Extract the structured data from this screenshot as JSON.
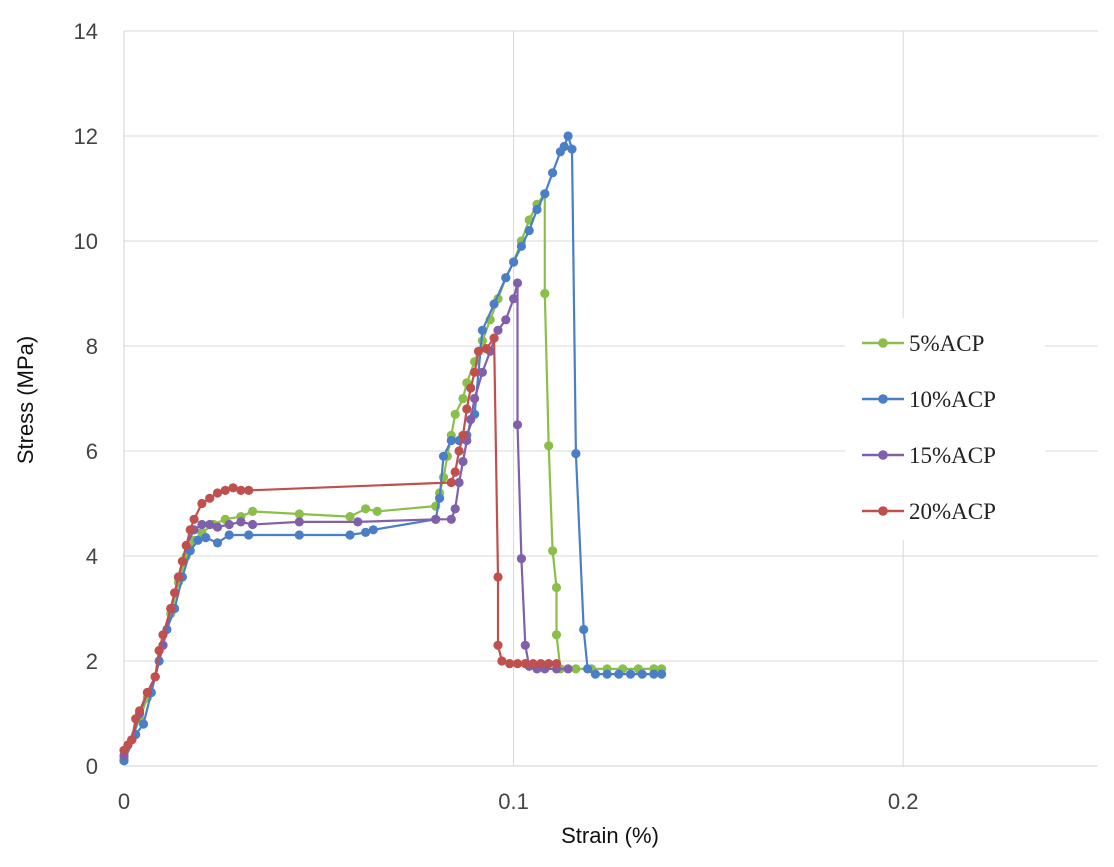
{
  "chart_data": {
    "type": "scatter",
    "title": "",
    "xlabel": "Strain (%)",
    "ylabel": "Stress (MPa)",
    "xlim": [
      0,
      0.25
    ],
    "ylim": [
      0,
      14
    ],
    "x_ticks": [
      "0",
      "0.1",
      "0.2"
    ],
    "x_tick_values": [
      0,
      0.1,
      0.2
    ],
    "y_ticks": [
      "0",
      "2",
      "4",
      "6",
      "8",
      "10",
      "12",
      "14"
    ],
    "y_tick_values": [
      0,
      2,
      4,
      6,
      8,
      10,
      12,
      14
    ],
    "grid": true,
    "legend_position": "right",
    "series": [
      {
        "name": "5%ACP",
        "color": "#8CBF4A",
        "points": [
          [
            0,
            0.15
          ],
          [
            0.002,
            0.5
          ],
          [
            0.004,
            0.9
          ],
          [
            0.006,
            1.3
          ],
          [
            0.008,
            1.7
          ],
          [
            0.01,
            2.3
          ],
          [
            0.012,
            2.9
          ],
          [
            0.014,
            3.5
          ],
          [
            0.016,
            4.0
          ],
          [
            0.018,
            4.3
          ],
          [
            0.02,
            4.45
          ],
          [
            0.023,
            4.6
          ],
          [
            0.026,
            4.7
          ],
          [
            0.03,
            4.75
          ],
          [
            0.033,
            4.85
          ],
          [
            0.045,
            4.8
          ],
          [
            0.058,
            4.75
          ],
          [
            0.062,
            4.9
          ],
          [
            0.065,
            4.85
          ],
          [
            0.08,
            4.95
          ],
          [
            0.081,
            5.2
          ],
          [
            0.082,
            5.5
          ],
          [
            0.083,
            5.9
          ],
          [
            0.084,
            6.3
          ],
          [
            0.085,
            6.7
          ],
          [
            0.087,
            7.0
          ],
          [
            0.088,
            7.3
          ],
          [
            0.09,
            7.7
          ],
          [
            0.092,
            8.1
          ],
          [
            0.094,
            8.5
          ],
          [
            0.096,
            8.9
          ],
          [
            0.098,
            9.3
          ],
          [
            0.1,
            9.6
          ],
          [
            0.102,
            10.0
          ],
          [
            0.104,
            10.4
          ],
          [
            0.106,
            10.7
          ],
          [
            0.108,
            10.9
          ],
          [
            0.108,
            9.0
          ],
          [
            0.109,
            6.1
          ],
          [
            0.11,
            4.1
          ],
          [
            0.111,
            3.4
          ],
          [
            0.111,
            2.5
          ],
          [
            0.112,
            1.85
          ],
          [
            0.116,
            1.85
          ],
          [
            0.12,
            1.85
          ],
          [
            0.124,
            1.85
          ],
          [
            0.128,
            1.85
          ],
          [
            0.132,
            1.85
          ],
          [
            0.136,
            1.85
          ],
          [
            0.138,
            1.85
          ]
        ]
      },
      {
        "name": "10%ACP",
        "color": "#4A7EC6",
        "points": [
          [
            0,
            0.1
          ],
          [
            0.003,
            0.6
          ],
          [
            0.005,
            0.8
          ],
          [
            0.007,
            1.4
          ],
          [
            0.009,
            2.0
          ],
          [
            0.011,
            2.6
          ],
          [
            0.013,
            3.0
          ],
          [
            0.015,
            3.6
          ],
          [
            0.017,
            4.1
          ],
          [
            0.019,
            4.3
          ],
          [
            0.021,
            4.35
          ],
          [
            0.024,
            4.25
          ],
          [
            0.027,
            4.4
          ],
          [
            0.032,
            4.4
          ],
          [
            0.045,
            4.4
          ],
          [
            0.058,
            4.4
          ],
          [
            0.062,
            4.45
          ],
          [
            0.064,
            4.5
          ],
          [
            0.08,
            4.7
          ],
          [
            0.081,
            5.1
          ],
          [
            0.082,
            5.9
          ],
          [
            0.084,
            6.2
          ],
          [
            0.086,
            6.2
          ],
          [
            0.088,
            6.3
          ],
          [
            0.09,
            6.7
          ],
          [
            0.092,
            8.3
          ],
          [
            0.095,
            8.8
          ],
          [
            0.098,
            9.3
          ],
          [
            0.1,
            9.6
          ],
          [
            0.102,
            9.9
          ],
          [
            0.104,
            10.2
          ],
          [
            0.106,
            10.6
          ],
          [
            0.108,
            10.9
          ],
          [
            0.11,
            11.3
          ],
          [
            0.112,
            11.7
          ],
          [
            0.113,
            11.8
          ],
          [
            0.114,
            12.0
          ],
          [
            0.115,
            11.75
          ],
          [
            0.116,
            5.95
          ],
          [
            0.118,
            2.6
          ],
          [
            0.119,
            1.85
          ],
          [
            0.121,
            1.75
          ],
          [
            0.124,
            1.75
          ],
          [
            0.127,
            1.75
          ],
          [
            0.13,
            1.75
          ],
          [
            0.133,
            1.75
          ],
          [
            0.136,
            1.75
          ],
          [
            0.138,
            1.75
          ]
        ]
      },
      {
        "name": "15%ACP",
        "color": "#8060AA",
        "points": [
          [
            0,
            0.2
          ],
          [
            0.002,
            0.5
          ],
          [
            0.004,
            1.0
          ],
          [
            0.006,
            1.4
          ],
          [
            0.008,
            1.7
          ],
          [
            0.01,
            2.3
          ],
          [
            0.012,
            3.0
          ],
          [
            0.014,
            3.6
          ],
          [
            0.016,
            4.2
          ],
          [
            0.018,
            4.5
          ],
          [
            0.02,
            4.6
          ],
          [
            0.022,
            4.6
          ],
          [
            0.024,
            4.55
          ],
          [
            0.027,
            4.6
          ],
          [
            0.03,
            4.65
          ],
          [
            0.033,
            4.6
          ],
          [
            0.045,
            4.65
          ],
          [
            0.06,
            4.65
          ],
          [
            0.08,
            4.7
          ],
          [
            0.084,
            4.7
          ],
          [
            0.085,
            4.9
          ],
          [
            0.086,
            5.4
          ],
          [
            0.087,
            5.8
          ],
          [
            0.088,
            6.2
          ],
          [
            0.089,
            6.6
          ],
          [
            0.09,
            7.0
          ],
          [
            0.092,
            7.5
          ],
          [
            0.094,
            7.9
          ],
          [
            0.096,
            8.3
          ],
          [
            0.098,
            8.5
          ],
          [
            0.1,
            8.9
          ],
          [
            0.101,
            9.2
          ],
          [
            0.101,
            6.5
          ],
          [
            0.102,
            3.95
          ],
          [
            0.103,
            2.3
          ],
          [
            0.104,
            1.9
          ],
          [
            0.106,
            1.85
          ],
          [
            0.108,
            1.85
          ],
          [
            0.111,
            1.85
          ],
          [
            0.114,
            1.85
          ]
        ]
      },
      {
        "name": "20%ACP",
        "color": "#C0504D",
        "points": [
          [
            0,
            0.3
          ],
          [
            0.001,
            0.4
          ],
          [
            0.002,
            0.5
          ],
          [
            0.003,
            0.9
          ],
          [
            0.004,
            1.05
          ],
          [
            0.006,
            1.4
          ],
          [
            0.008,
            1.7
          ],
          [
            0.009,
            2.2
          ],
          [
            0.01,
            2.5
          ],
          [
            0.012,
            3.0
          ],
          [
            0.013,
            3.3
          ],
          [
            0.014,
            3.6
          ],
          [
            0.015,
            3.9
          ],
          [
            0.016,
            4.2
          ],
          [
            0.017,
            4.5
          ],
          [
            0.018,
            4.7
          ],
          [
            0.02,
            5.0
          ],
          [
            0.022,
            5.1
          ],
          [
            0.024,
            5.2
          ],
          [
            0.026,
            5.25
          ],
          [
            0.028,
            5.3
          ],
          [
            0.03,
            5.25
          ],
          [
            0.032,
            5.25
          ],
          [
            0.084,
            5.4
          ],
          [
            0.085,
            5.6
          ],
          [
            0.086,
            6.0
          ],
          [
            0.087,
            6.3
          ],
          [
            0.088,
            6.8
          ],
          [
            0.089,
            7.2
          ],
          [
            0.09,
            7.5
          ],
          [
            0.091,
            7.9
          ],
          [
            0.093,
            7.95
          ],
          [
            0.095,
            8.15
          ],
          [
            0.096,
            3.6
          ],
          [
            0.096,
            2.3
          ],
          [
            0.097,
            2.0
          ],
          [
            0.099,
            1.95
          ],
          [
            0.101,
            1.95
          ],
          [
            0.103,
            1.95
          ],
          [
            0.105,
            1.95
          ],
          [
            0.107,
            1.95
          ],
          [
            0.109,
            1.95
          ],
          [
            0.111,
            1.95
          ]
        ]
      }
    ]
  }
}
